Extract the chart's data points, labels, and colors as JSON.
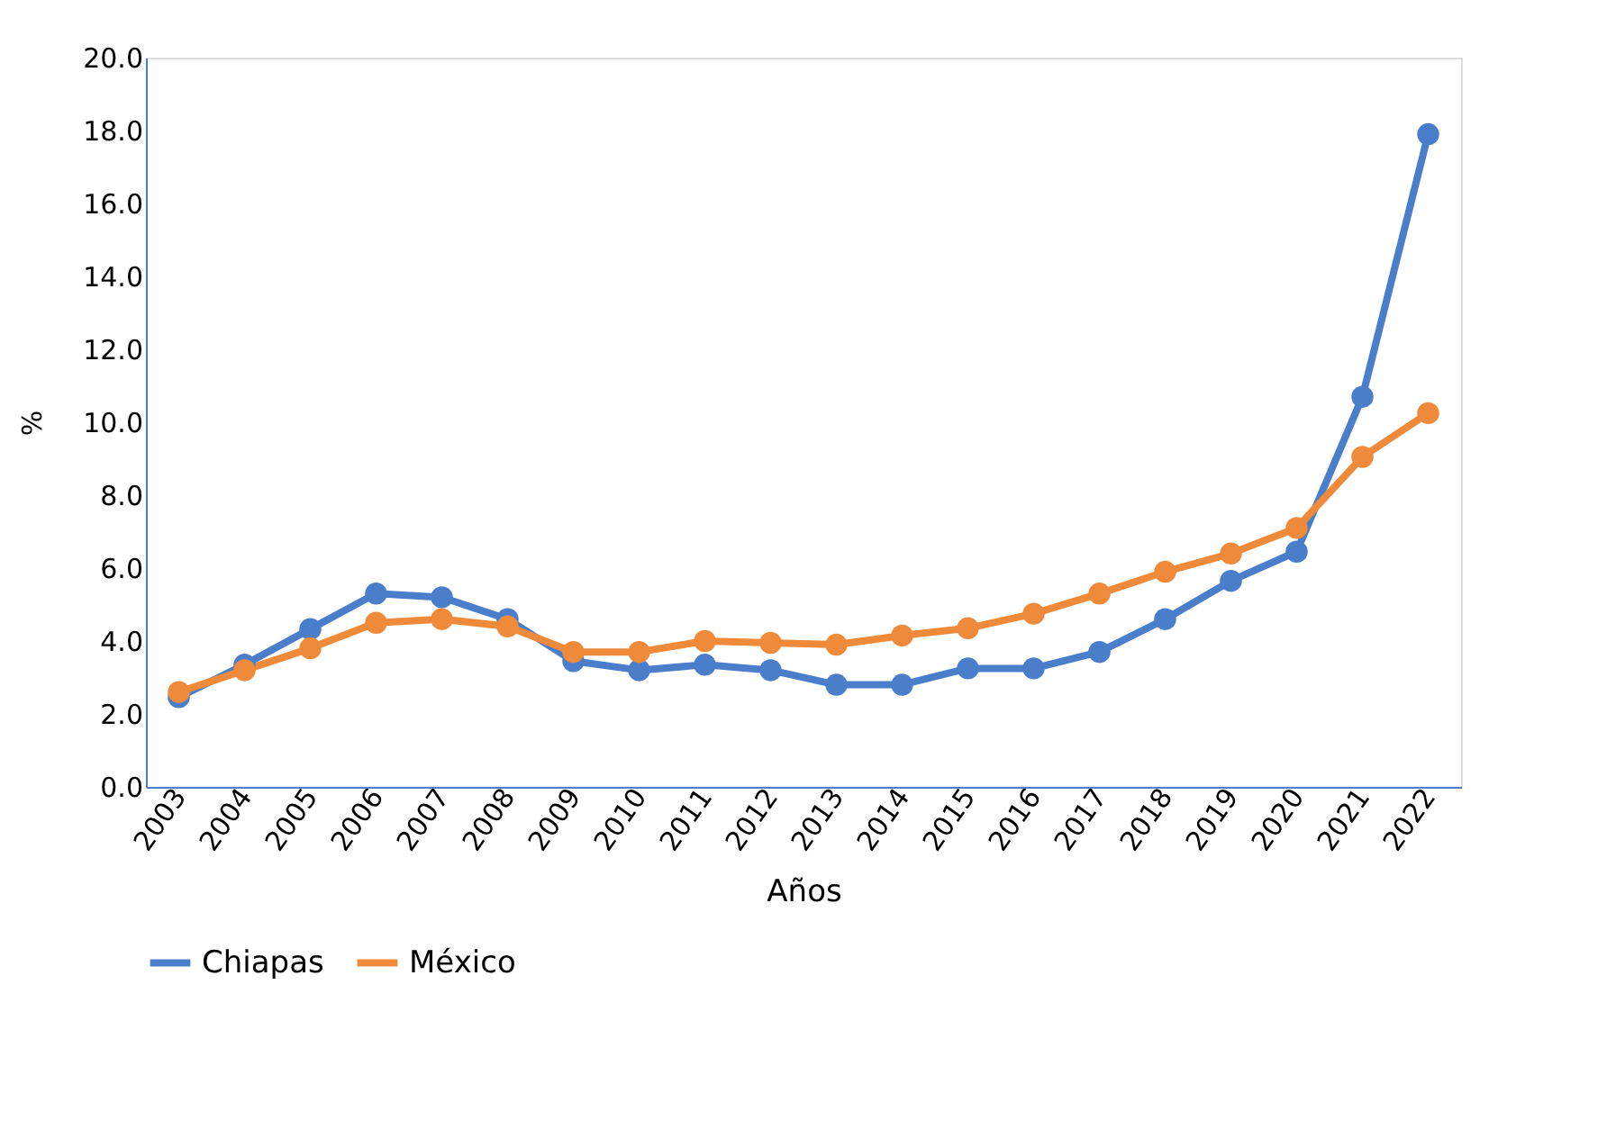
{
  "chart_data": {
    "type": "line",
    "xlabel": "Años",
    "ylabel": "%",
    "categories": [
      "2003",
      "2004",
      "2005",
      "2006",
      "2007",
      "2008",
      "2009",
      "2010",
      "2011",
      "2012",
      "2013",
      "2014",
      "2015",
      "2016",
      "2017",
      "2018",
      "2019",
      "2020",
      "2021",
      "2022"
    ],
    "series": [
      {
        "name": "Chiapas",
        "color": "#4a7ecb",
        "values": [
          2.46,
          3.35,
          4.33,
          5.3,
          5.2,
          4.6,
          3.45,
          3.2,
          3.35,
          3.2,
          2.8,
          2.8,
          3.25,
          3.25,
          3.7,
          4.6,
          5.65,
          6.45,
          10.7,
          17.9
        ]
      },
      {
        "name": "México",
        "color": "#ef8a3a",
        "values": [
          2.6,
          3.2,
          3.8,
          4.5,
          4.6,
          4.4,
          3.7,
          3.7,
          4.0,
          3.95,
          3.9,
          4.15,
          4.35,
          4.75,
          5.3,
          5.9,
          6.4,
          7.1,
          9.05,
          10.25
        ]
      }
    ],
    "ylim": [
      0,
      20
    ],
    "yticks": [
      {
        "value": 0,
        "label": "0.0"
      },
      {
        "value": 2,
        "label": "2.0"
      },
      {
        "value": 4,
        "label": "4.0"
      },
      {
        "value": 6,
        "label": "6.0"
      },
      {
        "value": 8,
        "label": "8.0"
      },
      {
        "value": 10,
        "label": "10.0"
      },
      {
        "value": 12,
        "label": "12.0"
      },
      {
        "value": 14,
        "label": "14.0"
      },
      {
        "value": 16,
        "label": "16.0"
      },
      {
        "value": 18,
        "label": "18.0"
      },
      {
        "value": 20,
        "label": "20.0"
      }
    ],
    "grid": false,
    "legend": "bottom",
    "marker": "circle",
    "line_style": "solid"
  }
}
